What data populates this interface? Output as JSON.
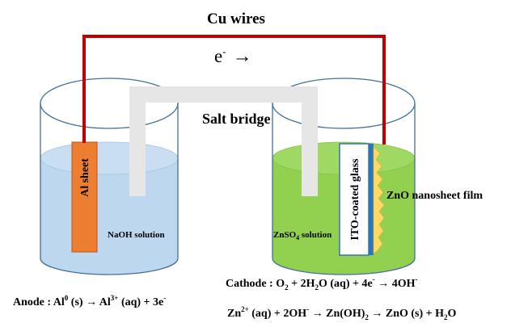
{
  "labels": {
    "wires": "Cu wires",
    "electron_symbol": "e",
    "electron_charge": "-",
    "electron_arrow": "→",
    "salt_bridge": "Salt bridge",
    "al_sheet": "Al sheet",
    "naoh": "NaOH solution",
    "znso4_pre": "ZnSO",
    "znso4_sub": "4",
    "znso4_post": " solution",
    "ito": "ITO-coated glass",
    "zno_film": "ZnO nanosheet film"
  },
  "equations": {
    "anode": {
      "p1": "Anode : Al",
      "sup1": "0",
      "p2": " (s) → Al",
      "sup2": "3+",
      "p3": " (aq) + 3e",
      "sup3": "-"
    },
    "cathode": {
      "p1": "Cathode : O",
      "sub1": "2",
      "p2": " + 2H",
      "sub2": "2",
      "p3": "O (aq) + 4e",
      "sup3": "-",
      "p4": " → 4OH",
      "sup4": "-"
    },
    "zinc": {
      "p1": "Zn",
      "sup1": "2+",
      "p2": " (aq) + 2OH",
      "sup2": "-",
      "p3": " → Zn(OH)",
      "sub3": "2",
      "p4": " → ZnO (s) + H",
      "sub4": "2",
      "p5": "O"
    }
  },
  "colors": {
    "wire": "#c00000",
    "naoh_solution": "#bdd7ee",
    "znso4_solution": "#92d050",
    "al_sheet": "#ed7d31",
    "ito_glass": "#2e75b6",
    "zno_film": "#ffd966",
    "salt_bridge": "#e7e6e6",
    "beaker_outline": "#41719c"
  }
}
